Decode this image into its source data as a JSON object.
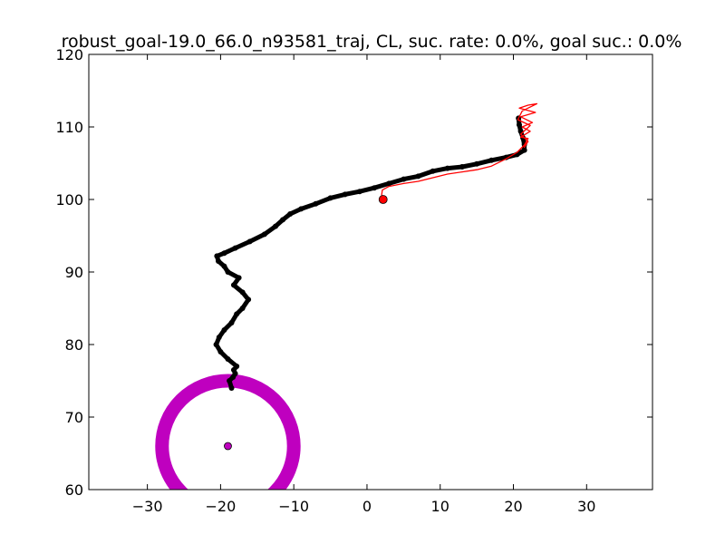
{
  "chart_data": {
    "type": "scatter",
    "title": "robust_goal-19.0_66.0_n93581_traj, CL, suc. rate: 0.0%, goal suc.: 0.0%",
    "xlabel": "",
    "ylabel": "",
    "xlim": [
      -38,
      39
    ],
    "ylim": [
      60,
      120
    ],
    "x_ticks": [
      -30,
      -20,
      -10,
      0,
      10,
      20,
      30
    ],
    "y_ticks": [
      60,
      70,
      80,
      90,
      100,
      110,
      120
    ],
    "x_tick_labels": [
      "−30",
      "−20",
      "−10",
      "0",
      "10",
      "20",
      "30"
    ],
    "y_tick_labels": [
      "60",
      "70",
      "80",
      "90",
      "100",
      "110",
      "120"
    ],
    "grid": false,
    "legend": "none",
    "colors": {
      "trajectory_black": "#000000",
      "trajectory_red": "#ff0000",
      "goal_ring": "#bf00bf",
      "start_marker": "#ff0000",
      "goal_marker": "#bf00bf"
    },
    "goal": {
      "center": [
        -19.0,
        66.0
      ],
      "radius": 9.0
    },
    "start": [
      2.2,
      100.0
    ],
    "series": [
      {
        "color": "#000000",
        "style": "thick-line-with-markers",
        "points": [
          [
            -18.5,
            74.0
          ],
          [
            -18.8,
            75.0
          ],
          [
            -18.3,
            75.5
          ],
          [
            -18.0,
            76.0
          ],
          [
            -18.2,
            76.5
          ],
          [
            -17.8,
            77.0
          ],
          [
            -19.0,
            78.0
          ],
          [
            -20.0,
            79.0
          ],
          [
            -20.6,
            80.0
          ],
          [
            -20.2,
            81.0
          ],
          [
            -19.5,
            82.0
          ],
          [
            -18.5,
            83.0
          ],
          [
            -17.8,
            84.2
          ],
          [
            -17.0,
            85.0
          ],
          [
            -16.2,
            86.2
          ],
          [
            -17.0,
            87.2
          ],
          [
            -18.2,
            88.2
          ],
          [
            -17.5,
            89.2
          ],
          [
            -19.0,
            90.0
          ],
          [
            -19.5,
            90.8
          ],
          [
            -20.3,
            91.5
          ],
          [
            -20.5,
            92.2
          ],
          [
            -19.5,
            92.6
          ],
          [
            -18.0,
            93.3
          ],
          [
            -16.0,
            94.2
          ],
          [
            -14.0,
            95.2
          ],
          [
            -12.5,
            96.3
          ],
          [
            -11.5,
            97.2
          ],
          [
            -10.5,
            98.0
          ],
          [
            -9.0,
            98.7
          ],
          [
            -7.0,
            99.4
          ],
          [
            -5.0,
            100.2
          ],
          [
            -3.0,
            100.7
          ],
          [
            -1.0,
            101.1
          ],
          [
            1.0,
            101.6
          ],
          [
            3.0,
            102.2
          ],
          [
            5.0,
            102.8
          ],
          [
            7.0,
            103.2
          ],
          [
            9.0,
            103.9
          ],
          [
            11.0,
            104.3
          ],
          [
            13.0,
            104.5
          ],
          [
            15.0,
            104.9
          ],
          [
            17.0,
            105.4
          ],
          [
            19.0,
            105.8
          ],
          [
            20.5,
            106.2
          ],
          [
            21.5,
            106.8
          ],
          [
            21.5,
            107.6
          ],
          [
            21.3,
            108.5
          ],
          [
            21.0,
            109.4
          ],
          [
            20.8,
            110.3
          ],
          [
            20.7,
            111.2
          ]
        ]
      },
      {
        "color": "#ff0000",
        "style": "thin-line",
        "points": [
          [
            2.2,
            100.0
          ],
          [
            2.0,
            100.6
          ],
          [
            2.1,
            101.3
          ],
          [
            3.0,
            101.8
          ],
          [
            5.0,
            102.2
          ],
          [
            7.0,
            102.5
          ],
          [
            9.0,
            103.0
          ],
          [
            11.0,
            103.5
          ],
          [
            13.0,
            103.8
          ],
          [
            15.0,
            104.1
          ],
          [
            17.0,
            104.6
          ],
          [
            19.0,
            105.6
          ],
          [
            20.5,
            106.5
          ],
          [
            21.5,
            107.5
          ],
          [
            22.0,
            108.4
          ],
          [
            21.0,
            108.6
          ],
          [
            22.3,
            109.4
          ],
          [
            21.2,
            110.0
          ],
          [
            22.6,
            110.6
          ],
          [
            21.0,
            111.4
          ],
          [
            23.0,
            112.0
          ],
          [
            20.8,
            112.6
          ],
          [
            22.0,
            113.0
          ],
          [
            23.2,
            113.2
          ],
          [
            21.2,
            112.2
          ],
          [
            20.6,
            111.0
          ],
          [
            22.3,
            110.2
          ],
          [
            21.0,
            109.0
          ],
          [
            22.0,
            108.0
          ],
          [
            21.5,
            107.2
          ]
        ]
      }
    ]
  }
}
